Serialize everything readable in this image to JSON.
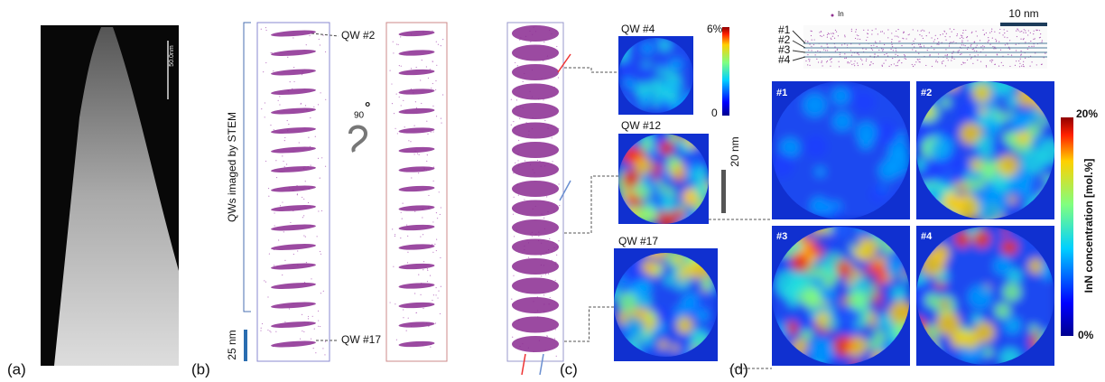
{
  "panels": {
    "a": {
      "label": "(a)",
      "scale_bar": "50.0nm"
    },
    "b": {
      "label": "(b)",
      "bracket_label": "QWs imaged by STEM",
      "qw_top": "QW #2",
      "qw_bottom": "QW #17",
      "rotation": "90",
      "rotation_unit": "°",
      "scale_bar": "25 nm"
    },
    "c": {
      "label": "(c)",
      "maps": [
        "QW #4",
        "QW #12",
        "QW #17"
      ],
      "colorbar_max": "6%",
      "colorbar_min": "0",
      "scale_bar": "20 nm"
    },
    "d": {
      "label": "(d)",
      "legend": "In",
      "scale_bar": "10 nm",
      "layers": [
        "#1",
        "#2",
        "#3",
        "#4"
      ],
      "maps": [
        "#1",
        "#2",
        "#3",
        "#4"
      ],
      "colorbar_max": "20%",
      "colorbar_min": "0%",
      "colorbar_title": "InN concentration [mol.%]"
    }
  }
}
